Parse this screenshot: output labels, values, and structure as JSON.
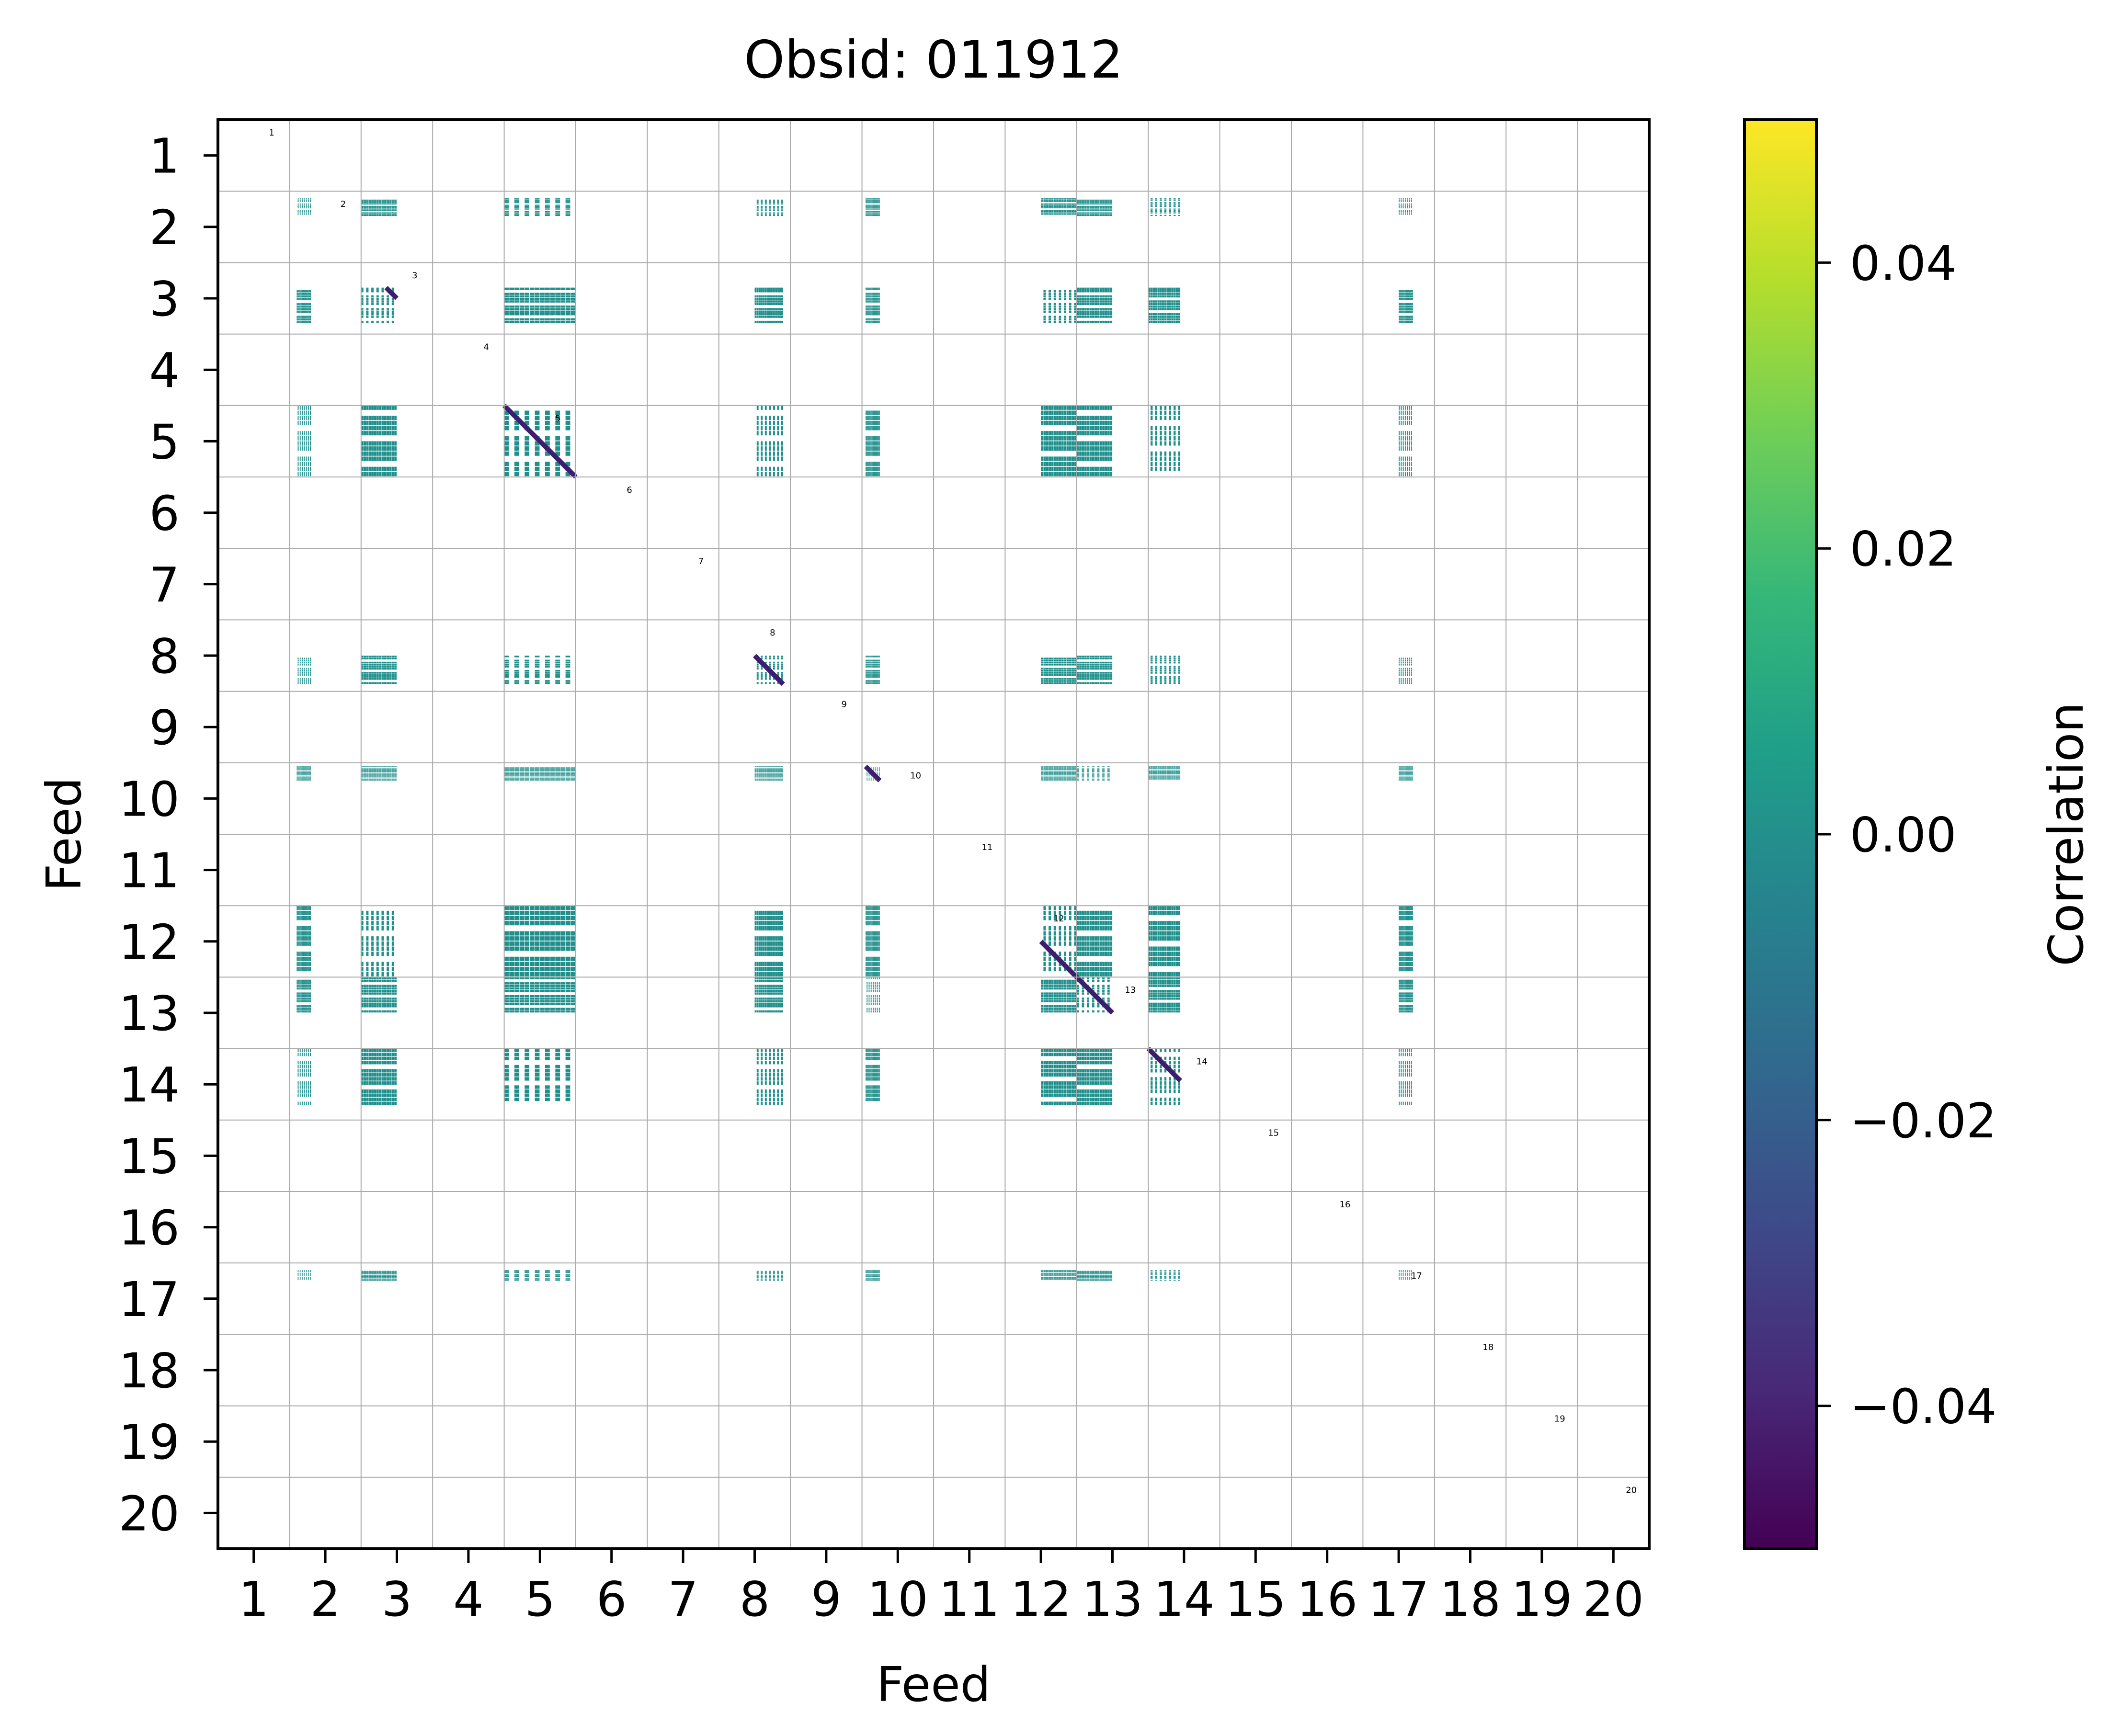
{
  "chart_data": {
    "type": "heatmap",
    "title": "Obsid: 011912",
    "xlabel": "Feed",
    "ylabel": "Feed",
    "x_ticks": [
      "1",
      "2",
      "3",
      "4",
      "5",
      "6",
      "7",
      "8",
      "9",
      "10",
      "11",
      "12",
      "13",
      "14",
      "15",
      "16",
      "17",
      "18",
      "19",
      "20"
    ],
    "y_ticks": [
      "1",
      "2",
      "3",
      "4",
      "5",
      "6",
      "7",
      "8",
      "9",
      "10",
      "11",
      "12",
      "13",
      "14",
      "15",
      "16",
      "17",
      "18",
      "19",
      "20"
    ],
    "block_labels": [
      "1",
      "2",
      "3",
      "4",
      "5",
      "6",
      "7",
      "8",
      "9",
      "10",
      "11",
      "12",
      "13",
      "14",
      "15",
      "16",
      "17",
      "18",
      "19",
      "20"
    ],
    "active_feeds": [
      2,
      3,
      5,
      8,
      10,
      12,
      13,
      14,
      17
    ],
    "feed_fill": {
      "2": {
        "x": [
          0.1,
          0.3
        ],
        "y": [
          0.1,
          0.35
        ]
      },
      "3": {
        "x": [
          0.0,
          0.5
        ],
        "y": [
          0.35,
          0.85
        ]
      },
      "5": {
        "x": [
          0.0,
          1.0
        ],
        "y": [
          0.0,
          1.0
        ]
      },
      "8": {
        "x": [
          0.5,
          0.9
        ],
        "y": [
          0.5,
          0.9
        ]
      },
      "10": {
        "x": [
          0.05,
          0.25
        ],
        "y": [
          0.05,
          0.25
        ]
      },
      "12": {
        "x": [
          0.5,
          1.0
        ],
        "y": [
          0.0,
          1.0
        ]
      },
      "13": {
        "x": [
          0.0,
          0.5
        ],
        "y": [
          0.0,
          0.5
        ]
      },
      "14": {
        "x": [
          0.0,
          0.45
        ],
        "y": [
          0.0,
          0.8
        ]
      },
      "17": {
        "x": [
          0.5,
          0.7
        ],
        "y": [
          0.1,
          0.25
        ]
      }
    },
    "diagonal_feeds": [
      3,
      5,
      8,
      10,
      12,
      13,
      14
    ],
    "cell_value": 0.0,
    "colorbar": {
      "label": "Correlation",
      "range": [
        -0.05,
        0.05
      ],
      "ticks": [
        -0.04,
        -0.02,
        0.0,
        0.02,
        0.04
      ],
      "tick_labels": [
        "−0.04",
        "−0.02",
        "0.00",
        "0.02",
        "0.04"
      ],
      "colormap": [
        "#440154",
        "#482878",
        "#3e4989",
        "#31688e",
        "#26828e",
        "#1f9e89",
        "#35b779",
        "#6ece58",
        "#b5de2b",
        "#fde725"
      ]
    },
    "colors": {
      "fill": "#21908c",
      "diagonal": "#3b1f6e",
      "grid": "#aaaaaa"
    }
  }
}
